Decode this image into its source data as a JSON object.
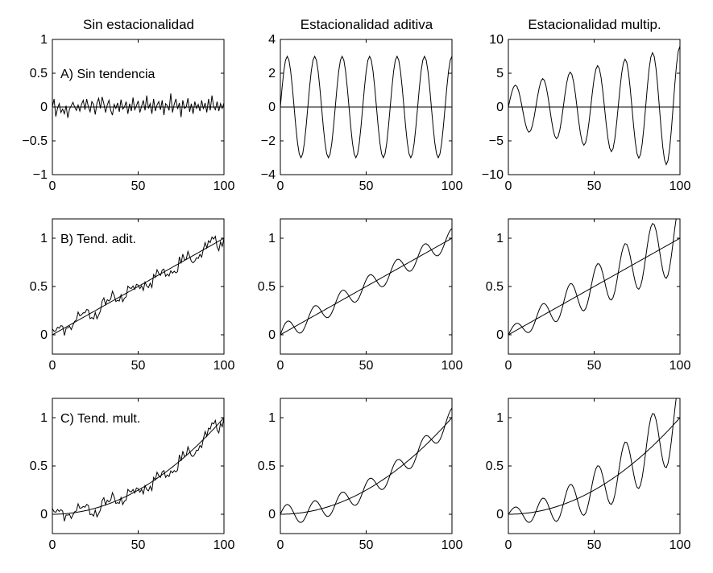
{
  "figure": {
    "column_titles": [
      "Sin estacionalidad",
      "Estacionalidad aditiva",
      "Estacionalidad multip."
    ],
    "row_labels": [
      "A) Sin tendencia",
      "B) Tend. adit.",
      "C) Tend. mult."
    ]
  },
  "chart_data": [
    {
      "type": "line",
      "row": 0,
      "col": 0,
      "title": "Sin estacionalidad",
      "annotation": "A) Sin tendencia",
      "xlim": [
        0,
        100
      ],
      "ylim": [
        -1,
        1
      ],
      "xticks": [
        0,
        50,
        100
      ],
      "yticks": [
        -1,
        -0.5,
        0,
        0.5,
        1
      ],
      "ytick_labels": [
        "−1",
        "−0.5",
        "0",
        "0.5",
        "1"
      ],
      "series": [
        {
          "kind": "noisy",
          "trend": "none",
          "season": "none",
          "values": [
            0,
            0.12,
            -0.14,
            -0.02,
            0.05,
            -0.08,
            -0.03,
            -0.1,
            0.02,
            -0.16,
            -0.03,
            0.02,
            0.07,
            0.0,
            -0.05,
            0.03,
            -0.06,
            0.04,
            0.1,
            -0.04,
            0.12,
            0.0,
            -0.07,
            0.08,
            0.04,
            -0.11,
            0.06,
            0.13,
            -0.02,
            0.15,
            0.05,
            -0.08,
            0.03,
            0.1,
            -0.05,
            -0.12,
            0.04,
            -0.02,
            0.06,
            -0.07,
            0.11,
            -0.03,
            0.0,
            0.08,
            -0.1,
            0.05,
            -0.06,
            0.14,
            -0.04,
            0.02,
            0.09,
            -0.08,
            0.01,
            0.1,
            -0.05,
            0.17,
            -0.02,
            0.05,
            -0.1,
            0.12,
            -0.06,
            0.03,
            0.08,
            -0.04,
            0.1,
            -0.12,
            0.05,
            0.02,
            -0.05,
            0.2,
            -0.08,
            0.04,
            0.12,
            -0.03,
            0.06,
            -0.15,
            0.1,
            -0.02,
            0.0,
            0.13,
            -0.07,
            0.05,
            -0.1,
            0.08,
            -0.02,
            0.04,
            -0.06,
            0.1,
            -0.03,
            0.06,
            -0.08,
            0.12,
            -0.05,
            0.17,
            0.0,
            -0.04,
            0.08,
            -0.06,
            0.05,
            -0.02,
            0.06
          ]
        },
        {
          "kind": "line",
          "trend": "none",
          "season": "none"
        }
      ]
    },
    {
      "type": "line",
      "row": 0,
      "col": 1,
      "title": "Estacionalidad aditiva",
      "xlim": [
        0,
        100
      ],
      "ylim": [
        -4,
        4
      ],
      "xticks": [
        0,
        50,
        100
      ],
      "yticks": [
        -4,
        -2,
        0,
        2,
        4
      ],
      "ytick_labels": [
        "−4",
        "−2",
        "0",
        "2",
        "4"
      ],
      "series": [
        {
          "kind": "wave",
          "trend": "none",
          "season": "additive"
        },
        {
          "kind": "line",
          "trend": "none",
          "season": "none"
        }
      ]
    },
    {
      "type": "line",
      "row": 0,
      "col": 2,
      "title": "Estacionalidad multip.",
      "xlim": [
        0,
        100
      ],
      "ylim": [
        -10,
        10
      ],
      "xticks": [
        0,
        50,
        100
      ],
      "yticks": [
        -10,
        -5,
        0,
        5,
        10
      ],
      "ytick_labels": [
        "−10",
        "−5",
        "0",
        "5",
        "10"
      ],
      "series": [
        {
          "kind": "wave",
          "trend": "none",
          "season": "multiplicative"
        },
        {
          "kind": "line",
          "trend": "none",
          "season": "none"
        }
      ]
    },
    {
      "type": "line",
      "row": 1,
      "col": 0,
      "annotation": "B) Tend. adit.",
      "xlim": [
        0,
        100
      ],
      "ylim": [
        -0.2,
        1.2
      ],
      "xticks": [
        0,
        50,
        100
      ],
      "yticks": [
        0,
        0.5,
        1
      ],
      "ytick_labels": [
        "0",
        "0.5",
        "1"
      ],
      "series": [
        {
          "kind": "noisy",
          "trend": "additive",
          "season": "none"
        },
        {
          "kind": "line",
          "trend": "additive",
          "season": "none"
        }
      ]
    },
    {
      "type": "line",
      "row": 1,
      "col": 1,
      "xlim": [
        0,
        100
      ],
      "ylim": [
        -0.2,
        1.2
      ],
      "xticks": [
        0,
        50,
        100
      ],
      "yticks": [
        0,
        0.5,
        1
      ],
      "ytick_labels": [
        "0",
        "0.5",
        "1"
      ],
      "series": [
        {
          "kind": "wave",
          "trend": "additive",
          "season": "additive"
        },
        {
          "kind": "line",
          "trend": "additive",
          "season": "none"
        }
      ]
    },
    {
      "type": "line",
      "row": 1,
      "col": 2,
      "xlim": [
        0,
        100
      ],
      "ylim": [
        -0.2,
        1.2
      ],
      "xticks": [
        0,
        50,
        100
      ],
      "yticks": [
        0,
        0.5,
        1
      ],
      "ytick_labels": [
        "0",
        "0.5",
        "1"
      ],
      "series": [
        {
          "kind": "wave",
          "trend": "additive",
          "season": "multiplicative"
        },
        {
          "kind": "line",
          "trend": "additive",
          "season": "none"
        }
      ]
    },
    {
      "type": "line",
      "row": 2,
      "col": 0,
      "annotation": "C) Tend. mult.",
      "xlim": [
        0,
        100
      ],
      "ylim": [
        -0.2,
        1.2
      ],
      "xticks": [
        0,
        50,
        100
      ],
      "yticks": [
        0,
        0.5,
        1
      ],
      "ytick_labels": [
        "0",
        "0.5",
        "1"
      ],
      "series": [
        {
          "kind": "noisy",
          "trend": "multiplicative",
          "season": "none"
        },
        {
          "kind": "line",
          "trend": "multiplicative",
          "season": "none"
        }
      ]
    },
    {
      "type": "line",
      "row": 2,
      "col": 1,
      "xlim": [
        0,
        100
      ],
      "ylim": [
        -0.2,
        1.2
      ],
      "xticks": [
        0,
        50,
        100
      ],
      "yticks": [
        0,
        0.5,
        1
      ],
      "ytick_labels": [
        "0",
        "0.5",
        "1"
      ],
      "series": [
        {
          "kind": "wave",
          "trend": "multiplicative",
          "season": "additive"
        },
        {
          "kind": "line",
          "trend": "multiplicative",
          "season": "none"
        }
      ]
    },
    {
      "type": "line",
      "row": 2,
      "col": 2,
      "xlim": [
        0,
        100
      ],
      "ylim": [
        -0.2,
        1.2
      ],
      "xticks": [
        0,
        50,
        100
      ],
      "yticks": [
        0,
        0.5,
        1
      ],
      "ytick_labels": [
        "0",
        "0.5",
        "1"
      ],
      "series": [
        {
          "kind": "wave",
          "trend": "multiplicative",
          "season": "multiplicative"
        },
        {
          "kind": "line",
          "trend": "multiplicative",
          "season": "none"
        }
      ]
    }
  ]
}
